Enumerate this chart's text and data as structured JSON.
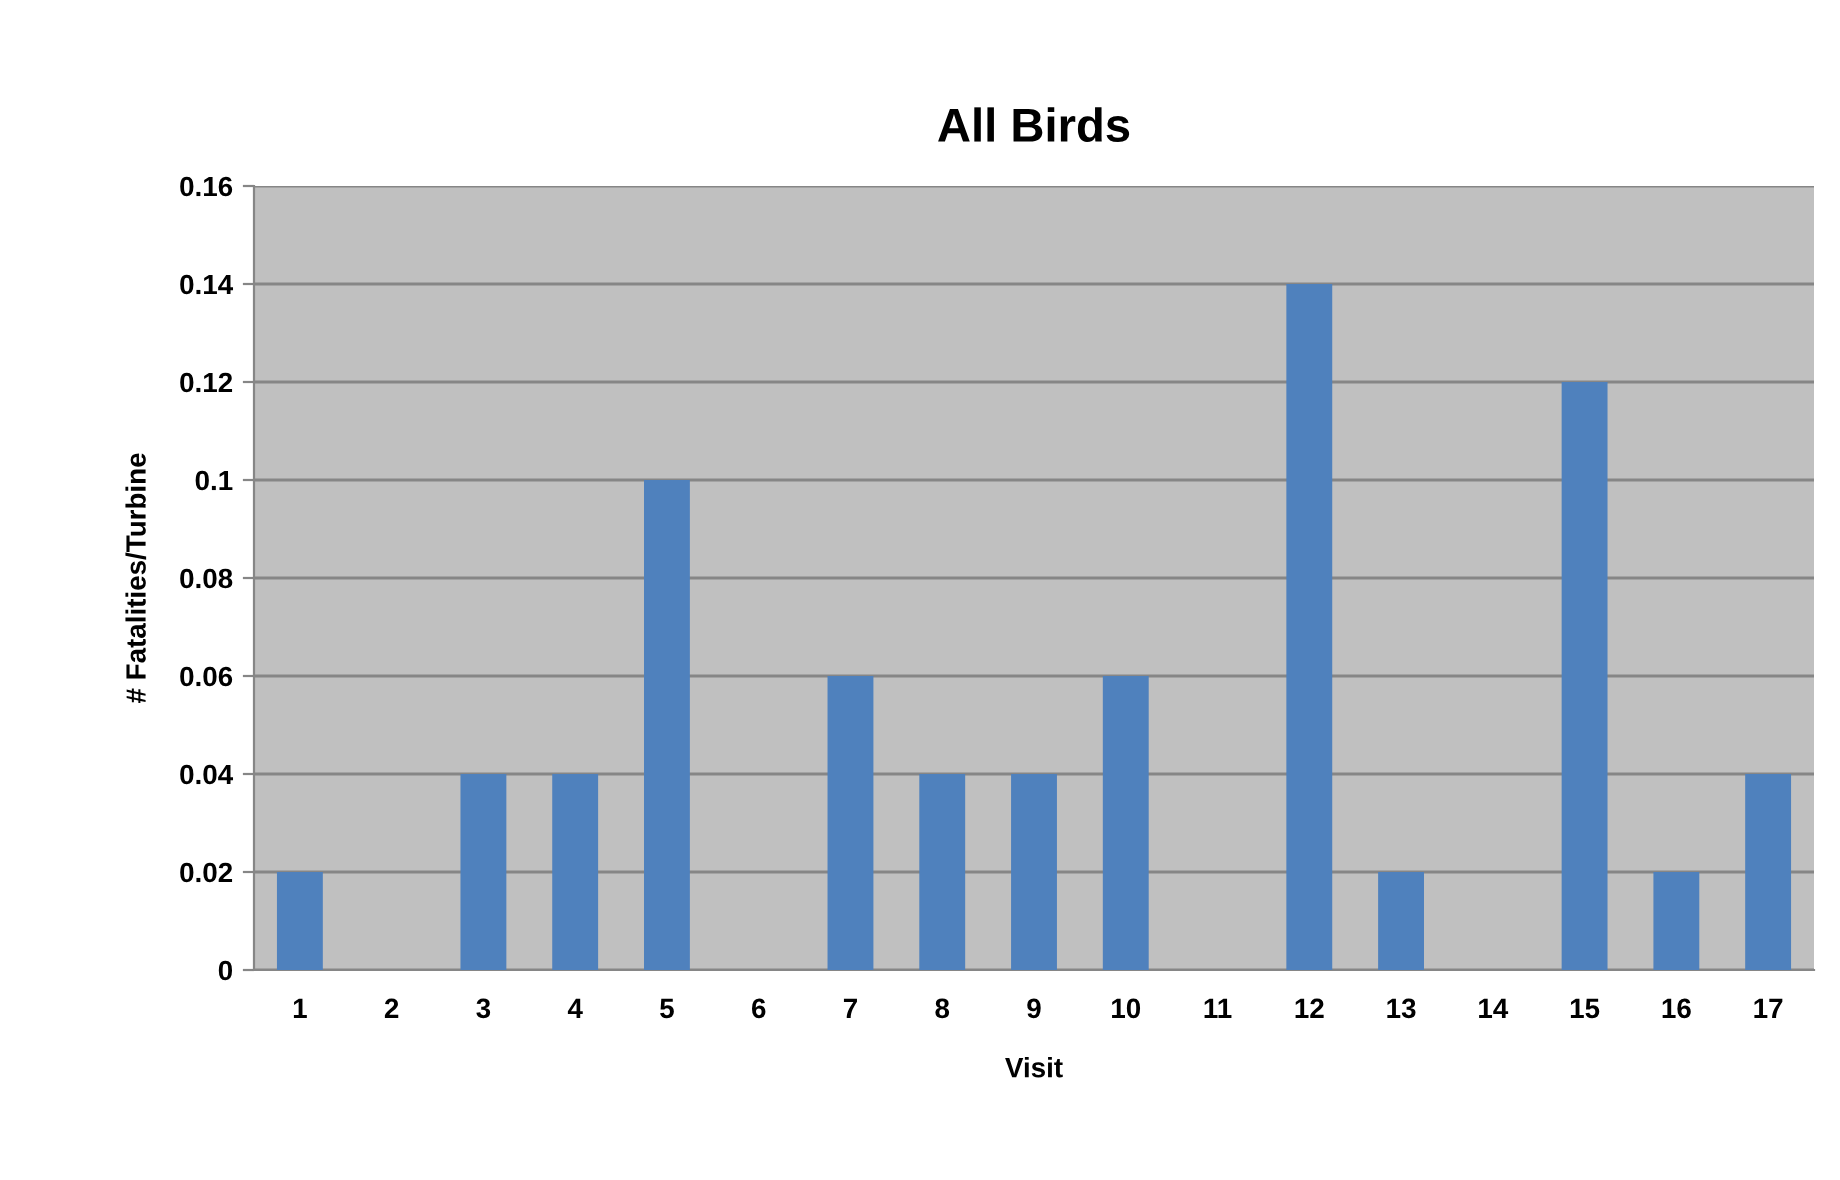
{
  "chart_data": {
    "type": "bar",
    "title": "All Birds",
    "xlabel": "Visit",
    "ylabel": "# Fatalities/Turbine",
    "categories": [
      "1",
      "2",
      "3",
      "4",
      "5",
      "6",
      "7",
      "8",
      "9",
      "10",
      "11",
      "12",
      "13",
      "14",
      "15",
      "16",
      "17"
    ],
    "values": [
      0.02,
      0,
      0.04,
      0.04,
      0.1,
      0,
      0.06,
      0.04,
      0.04,
      0.06,
      0,
      0.14,
      0.02,
      0,
      0.12,
      0.02,
      0.04
    ],
    "color": "#4f81bd",
    "ylim": [
      0,
      0.16
    ],
    "yticks": [
      0,
      0.02,
      0.04,
      0.06,
      0.08,
      0.1,
      0.12,
      0.14,
      0.16
    ],
    "grid": "y"
  }
}
